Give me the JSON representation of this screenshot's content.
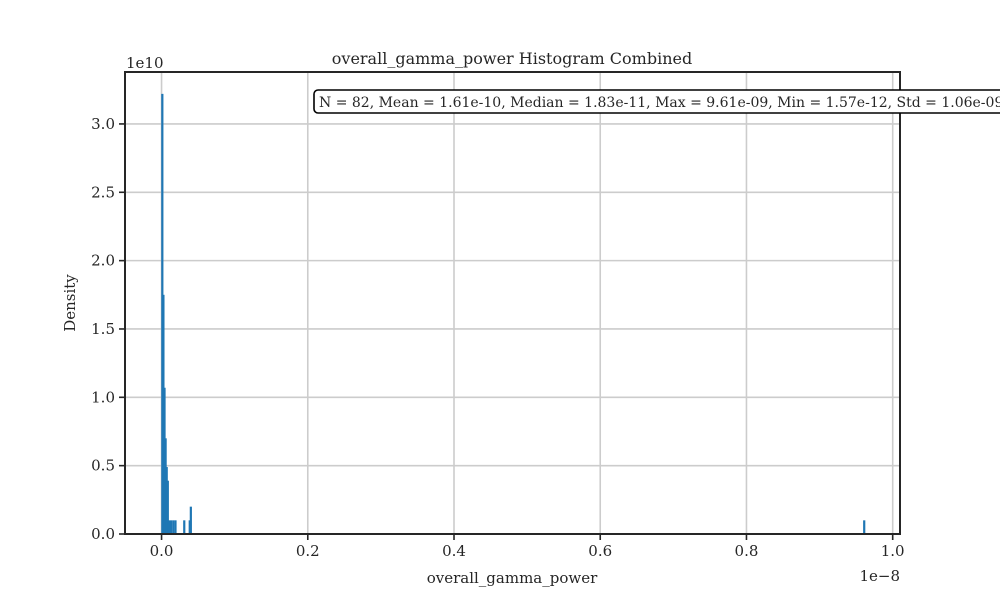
{
  "chart_data": {
    "type": "bar",
    "title": "overall_gamma_power Histogram Combined",
    "xlabel": "overall_gamma_power",
    "ylabel": "Density",
    "x_scale_label": "1e−8",
    "y_scale_label": "1e10",
    "x_scale": 1e-08,
    "y_scale": 10000000000.0,
    "xlim": [
      -0.05,
      1.01
    ],
    "ylim": [
      0,
      3.38
    ],
    "x_ticks": [
      0.0,
      0.2,
      0.4,
      0.6,
      0.8,
      1.0
    ],
    "x_tick_labels": [
      "0.0",
      "0.2",
      "0.4",
      "0.6",
      "0.8",
      "1.0"
    ],
    "y_ticks": [
      0.0,
      0.5,
      1.0,
      1.5,
      2.0,
      2.5,
      3.0
    ],
    "y_tick_labels": [
      "0.0",
      "0.5",
      "1.0",
      "1.5",
      "2.0",
      "2.5",
      "3.0"
    ],
    "grid": true,
    "bar_color": "#1f77b4",
    "bins": [
      {
        "x": 0.0003,
        "density": 3.22
      },
      {
        "x": 0.0018,
        "density": 1.75
      },
      {
        "x": 0.0033,
        "density": 1.07
      },
      {
        "x": 0.0048,
        "density": 0.7
      },
      {
        "x": 0.0063,
        "density": 0.49
      },
      {
        "x": 0.0078,
        "density": 0.39
      },
      {
        "x": 0.0093,
        "density": 0.1
      },
      {
        "x": 0.0123,
        "density": 0.1
      },
      {
        "x": 0.0153,
        "density": 0.1
      },
      {
        "x": 0.0183,
        "density": 0.1
      },
      {
        "x": 0.0303,
        "density": 0.1
      },
      {
        "x": 0.0378,
        "density": 0.1
      },
      {
        "x": 0.0393,
        "density": 0.2
      },
      {
        "x": 0.9603,
        "density": 0.1
      }
    ],
    "annotation": "N = 82, Mean = 1.61e-10, Median = 1.83e-11, Max = 9.61e-09, Min = 1.57e-12, Std = 1.06e-09"
  }
}
